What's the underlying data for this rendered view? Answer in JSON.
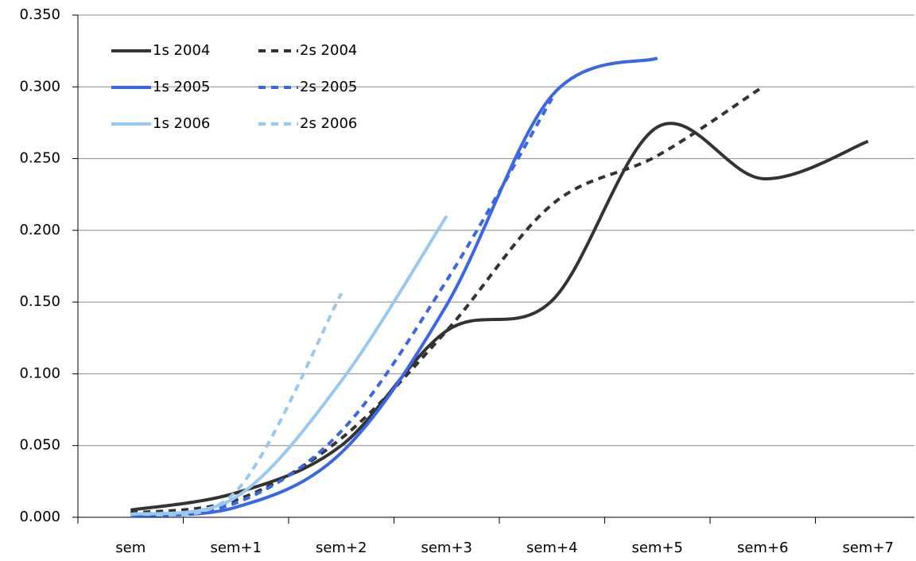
{
  "chart_data": {
    "type": "line",
    "categories": [
      "sem",
      "sem+1",
      "sem+2",
      "sem+3",
      "sem+4",
      "sem+5",
      "sem+6",
      "sem+7"
    ],
    "series": [
      {
        "name": "1s 2004",
        "color": "#333333",
        "dash": false,
        "values": [
          0.005,
          0.017,
          0.05,
          0.13,
          0.151,
          0.272,
          0.236,
          0.262
        ]
      },
      {
        "name": "2s 2004",
        "color": "#333333",
        "dash": true,
        "values": [
          0.003,
          0.012,
          0.055,
          0.13,
          0.218,
          0.252,
          0.3,
          null
        ]
      },
      {
        "name": "1s 2005",
        "color": "#3a66e8",
        "dash": false,
        "values": [
          0.001,
          0.007,
          0.045,
          0.148,
          0.294,
          0.32,
          null,
          null
        ]
      },
      {
        "name": "2s 2005",
        "color": "#3a66e8",
        "dash": true,
        "values": [
          0.002,
          0.01,
          0.06,
          0.165,
          0.292,
          null,
          null,
          null
        ]
      },
      {
        "name": "1s 2006",
        "color": "#99c8f0",
        "dash": false,
        "values": [
          0.002,
          0.014,
          0.095,
          0.21,
          null,
          null,
          null,
          null
        ]
      },
      {
        "name": "2s 2006",
        "color": "#99c8f0",
        "dash": true,
        "values": [
          0.002,
          0.018,
          0.156,
          null,
          null,
          null,
          null,
          null
        ]
      }
    ],
    "ylim": [
      0,
      0.35
    ],
    "yticks": [
      {
        "value": 0,
        "label": "0.000"
      },
      {
        "value": 0.05,
        "label": "0.050"
      },
      {
        "value": 0.1,
        "label": "0.100"
      },
      {
        "value": 0.15,
        "label": "0.150"
      },
      {
        "value": 0.2,
        "label": "0.200"
      },
      {
        "value": 0.25,
        "label": "0.250"
      },
      {
        "value": 0.3,
        "label": "0.300"
      },
      {
        "value": 0.35,
        "label": "0.350"
      }
    ],
    "grid": true,
    "legend": "top-left"
  }
}
